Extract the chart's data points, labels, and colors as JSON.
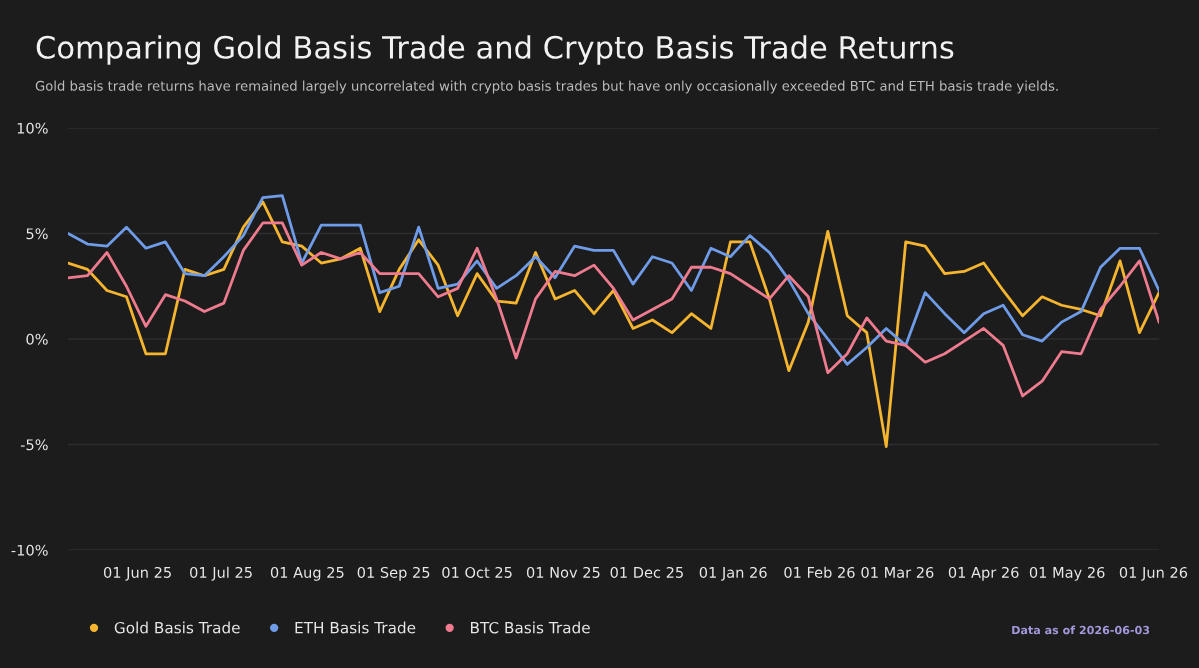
{
  "chart_data": {
    "type": "line",
    "title": "Comparing Gold Basis Trade and Crypto Basis Trade Returns",
    "subtitle": "Gold basis trade returns have remained largely uncorrelated with crypto basis trades but have only occasionally exceeded BTC and ETH basis trade yields.",
    "annotations": [
      "Data as of 2026-06-03"
    ],
    "x": [
      "2025-05-07",
      "2025-05-14",
      "2025-05-21",
      "2025-05-28",
      "2025-06-04",
      "2025-06-11",
      "2025-06-18",
      "2025-06-25",
      "2025-07-02",
      "2025-07-09",
      "2025-07-16",
      "2025-07-23",
      "2025-07-30",
      "2025-08-06",
      "2025-08-13",
      "2025-08-20",
      "2025-08-27",
      "2025-09-03",
      "2025-09-10",
      "2025-09-17",
      "2025-09-24",
      "2025-10-01",
      "2025-10-08",
      "2025-10-15",
      "2025-10-22",
      "2025-10-29",
      "2025-11-05",
      "2025-11-12",
      "2025-11-19",
      "2025-11-26",
      "2025-12-03",
      "2025-12-10",
      "2025-12-17",
      "2025-12-24",
      "2025-12-31",
      "2026-01-07",
      "2026-01-14",
      "2026-01-21",
      "2026-01-28",
      "2026-02-04",
      "2026-02-11",
      "2026-02-18",
      "2026-02-25",
      "2026-03-04",
      "2026-03-11",
      "2026-03-18",
      "2026-03-25",
      "2026-04-01",
      "2026-04-08",
      "2026-04-15",
      "2026-04-22",
      "2026-04-29",
      "2026-05-06",
      "2026-05-13",
      "2026-05-20",
      "2026-05-27",
      "2026-06-03"
    ],
    "series": [
      {
        "name": "Gold Basis Trade",
        "color": "#f5b52e",
        "values": [
          3.6,
          3.3,
          2.3,
          2.0,
          -0.7,
          -0.7,
          3.3,
          3.0,
          3.3,
          5.3,
          6.5,
          4.6,
          4.4,
          3.6,
          3.8,
          4.3,
          1.3,
          3.3,
          4.7,
          3.5,
          1.1,
          3.1,
          1.8,
          1.7,
          4.1,
          1.9,
          2.3,
          1.2,
          2.3,
          0.5,
          0.9,
          0.3,
          1.2,
          0.5,
          4.6,
          4.6,
          1.9,
          -1.5,
          0.8,
          5.1,
          1.1,
          0.3,
          -5.1,
          4.6,
          4.4,
          3.1,
          3.2,
          3.6,
          2.3,
          1.1,
          2.0,
          1.6,
          1.4,
          1.1,
          3.7,
          0.3,
          2.2
        ]
      },
      {
        "name": "ETH Basis Trade",
        "color": "#6f9ce8",
        "values": [
          5.0,
          4.5,
          4.4,
          5.3,
          4.3,
          4.6,
          3.1,
          3.0,
          3.9,
          4.9,
          6.7,
          6.8,
          3.6,
          5.4,
          5.4,
          5.4,
          2.2,
          2.5,
          5.3,
          2.4,
          2.6,
          3.7,
          2.4,
          3.0,
          3.9,
          2.9,
          4.4,
          4.2,
          4.2,
          2.6,
          3.9,
          3.6,
          2.3,
          4.3,
          3.9,
          4.9,
          4.1,
          2.8,
          1.2,
          0.0,
          -1.2,
          -0.4,
          0.5,
          -0.3,
          2.2,
          1.2,
          0.3,
          1.2,
          1.6,
          0.2,
          -0.1,
          0.8,
          1.3,
          3.4,
          4.3,
          4.3,
          2.3
        ]
      },
      {
        "name": "BTC Basis Trade",
        "color": "#ef7b8e",
        "values": [
          2.9,
          3.0,
          4.1,
          2.5,
          0.6,
          2.1,
          1.8,
          1.3,
          1.7,
          4.2,
          5.5,
          5.5,
          3.5,
          4.1,
          3.8,
          4.1,
          3.1,
          3.1,
          3.1,
          2.0,
          2.4,
          4.3,
          1.9,
          -0.9,
          1.9,
          3.2,
          3.0,
          3.5,
          2.4,
          0.9,
          1.4,
          1.9,
          3.4,
          3.4,
          3.1,
          2.5,
          1.9,
          3.0,
          2.0,
          -1.6,
          -0.7,
          1.0,
          -0.1,
          -0.3,
          -1.1,
          -0.7,
          -0.1,
          0.5,
          -0.3,
          -2.7,
          -2.0,
          -0.6,
          -0.7,
          1.4,
          2.5,
          3.7,
          0.8
        ]
      }
    ],
    "xlim": [
      "2025-05-07",
      "2026-06-03"
    ],
    "xticks": [
      {
        "value": "2025-06-01",
        "label": "01 Jun 25"
      },
      {
        "value": "2025-07-01",
        "label": "01 Jul 25"
      },
      {
        "value": "2025-08-01",
        "label": "01 Aug 25"
      },
      {
        "value": "2025-09-01",
        "label": "01 Sep 25"
      },
      {
        "value": "2025-10-01",
        "label": "01 Oct 25"
      },
      {
        "value": "2025-11-01",
        "label": "01 Nov 25"
      },
      {
        "value": "2025-12-01",
        "label": "01 Dec 25"
      },
      {
        "value": "2026-01-01",
        "label": "01 Jan 26"
      },
      {
        "value": "2026-02-01",
        "label": "01 Feb 26"
      },
      {
        "value": "2026-03-01",
        "label": "01 Mar 26"
      },
      {
        "value": "2026-04-01",
        "label": "01 Apr 26"
      },
      {
        "value": "2026-05-01",
        "label": "01 May 26"
      },
      {
        "value": "2026-06-01",
        "label": "01 Jun 26"
      }
    ],
    "ylim": [
      -10,
      10
    ],
    "yticks": [
      {
        "value": -10,
        "label": "-10%"
      },
      {
        "value": -5,
        "label": "-5%"
      },
      {
        "value": 0,
        "label": "0%"
      },
      {
        "value": 5,
        "label": "5%"
      },
      {
        "value": 10,
        "label": "10%"
      }
    ],
    "grid": "y",
    "legend": "bottom left",
    "marker": "none",
    "line_style": "solid"
  }
}
